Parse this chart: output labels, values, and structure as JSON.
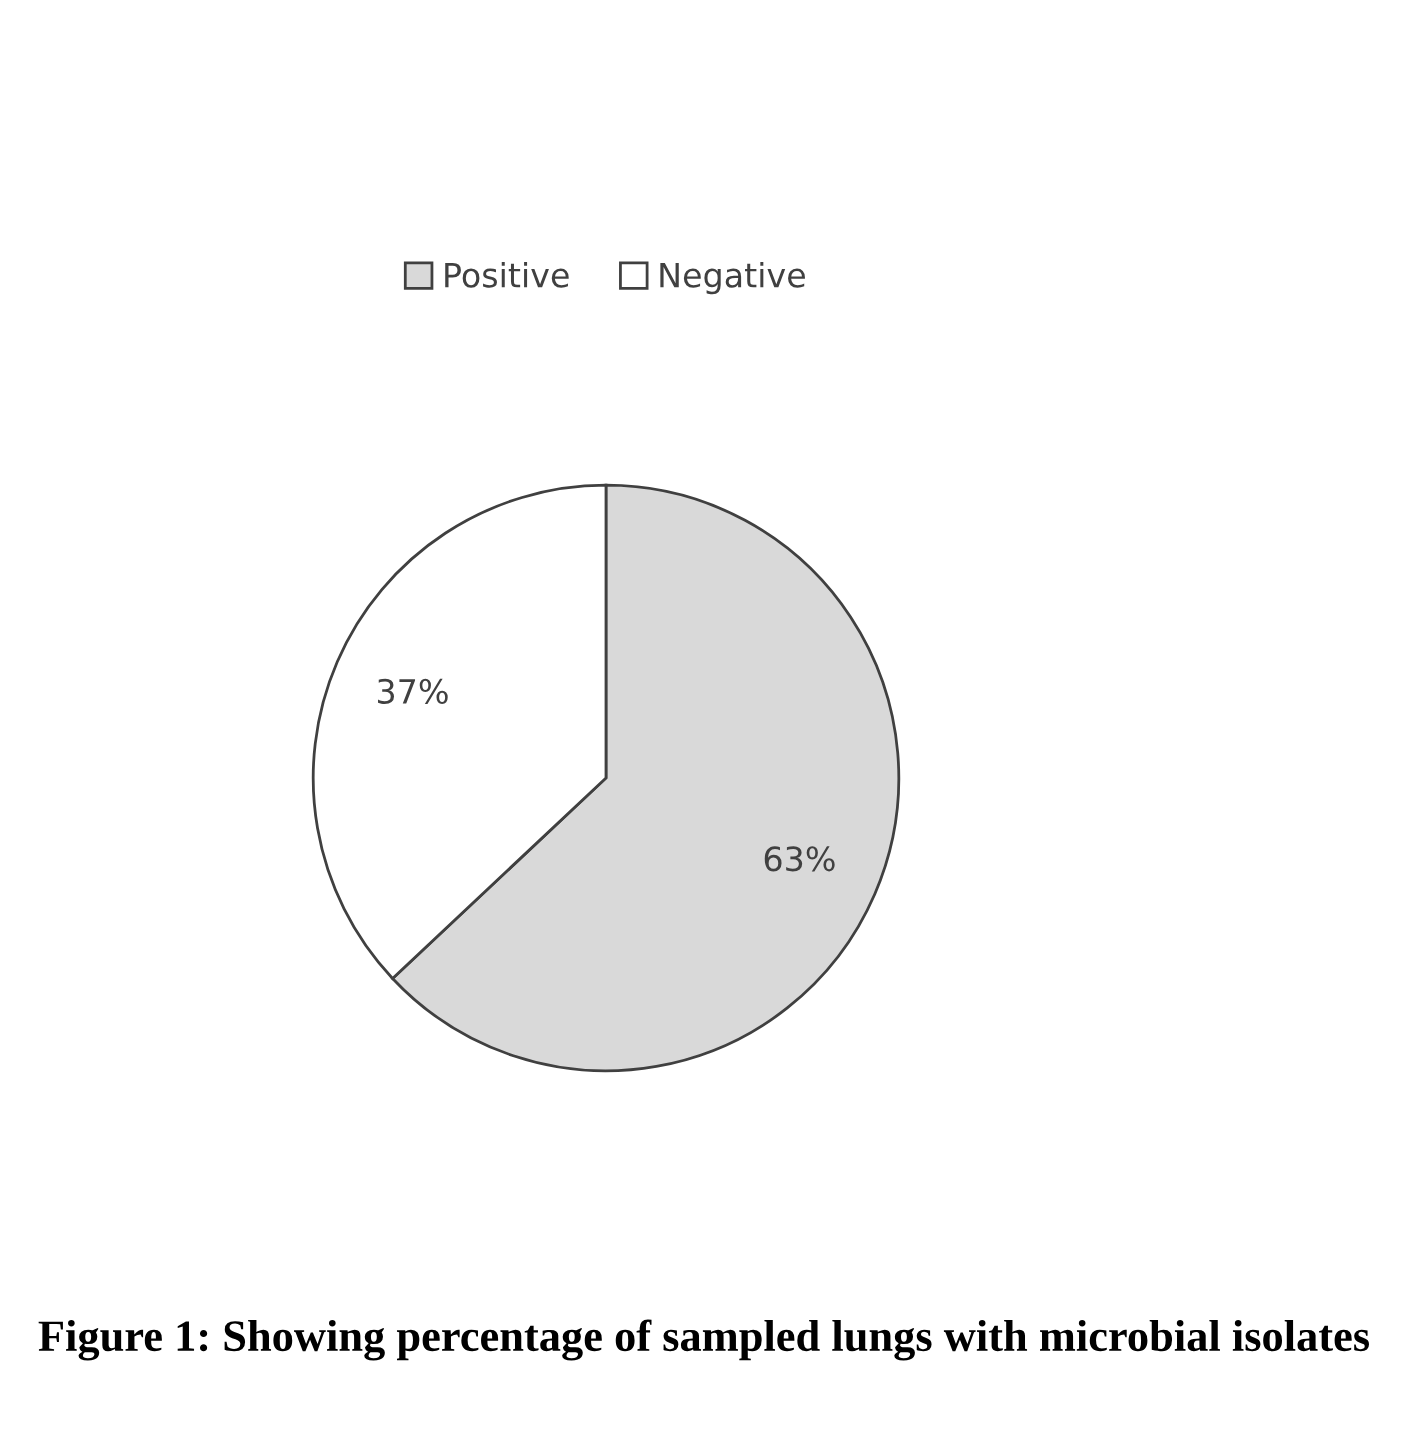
{
  "chart_data": {
    "type": "pie",
    "categories": [
      "Positive",
      "Negative"
    ],
    "values": [
      63,
      37
    ],
    "colors": [
      "#d9d9d9",
      "#ffffff"
    ],
    "value_labels": [
      "63%",
      "37%"
    ],
    "legend": "top",
    "annotations": [
      "Figure 1: Showing percentage of sampled lungs with microbial isolates"
    ]
  }
}
